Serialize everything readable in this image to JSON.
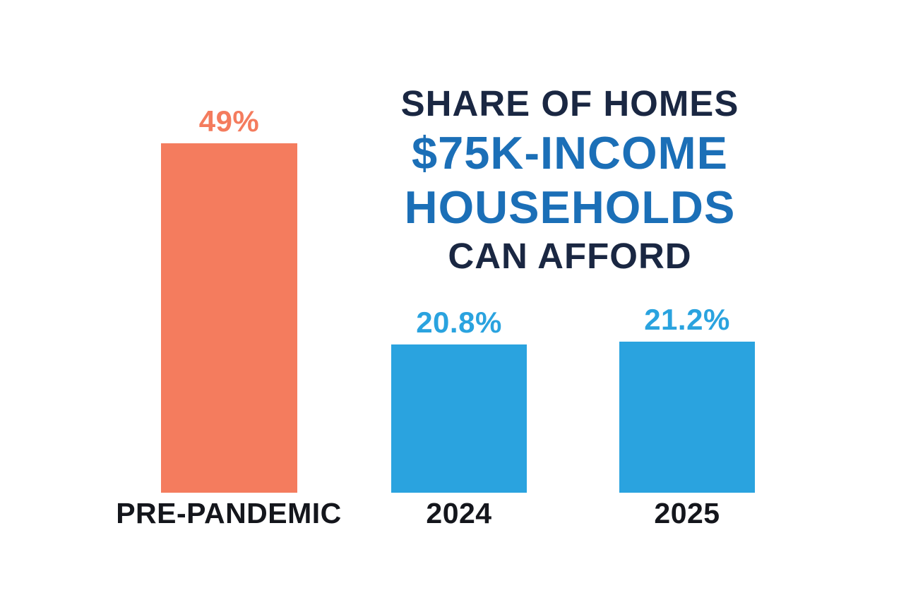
{
  "title": {
    "lines": [
      {
        "text": "SHARE OF HOMES",
        "color": "#1A2742"
      },
      {
        "text": "$75K-INCOME",
        "color": "#1B6FB7"
      },
      {
        "text": "HOUSEHOLDS",
        "color": "#1B6FB7"
      },
      {
        "text": "CAN AFFORD",
        "color": "#1A2742"
      }
    ]
  },
  "chart_data": {
    "type": "bar",
    "title": "Share of homes $75K-income households can afford",
    "categories": [
      "PRE-PANDEMIC",
      "2024",
      "2025"
    ],
    "values": [
      49,
      20.8,
      21.2
    ],
    "value_labels": [
      "49%",
      "20.8%",
      "21.2%"
    ],
    "unit": "%",
    "ylim": [
      0,
      49
    ],
    "axes_visible": false,
    "gridlines": false,
    "legend": "none",
    "bar_colors": [
      "#F47C5E",
      "#2AA3DF",
      "#2AA3DF"
    ],
    "value_label_colors": [
      "#F47C5E",
      "#2AA3DF",
      "#2AA3DF"
    ],
    "category_label_color": "#14161C"
  },
  "colors": {
    "background": "#FFFFFF",
    "salmon": "#F47C5E",
    "blue": "#2AA3DF",
    "navy": "#1A2742",
    "title_blue": "#1B6FB7",
    "label_dark": "#14161C"
  }
}
